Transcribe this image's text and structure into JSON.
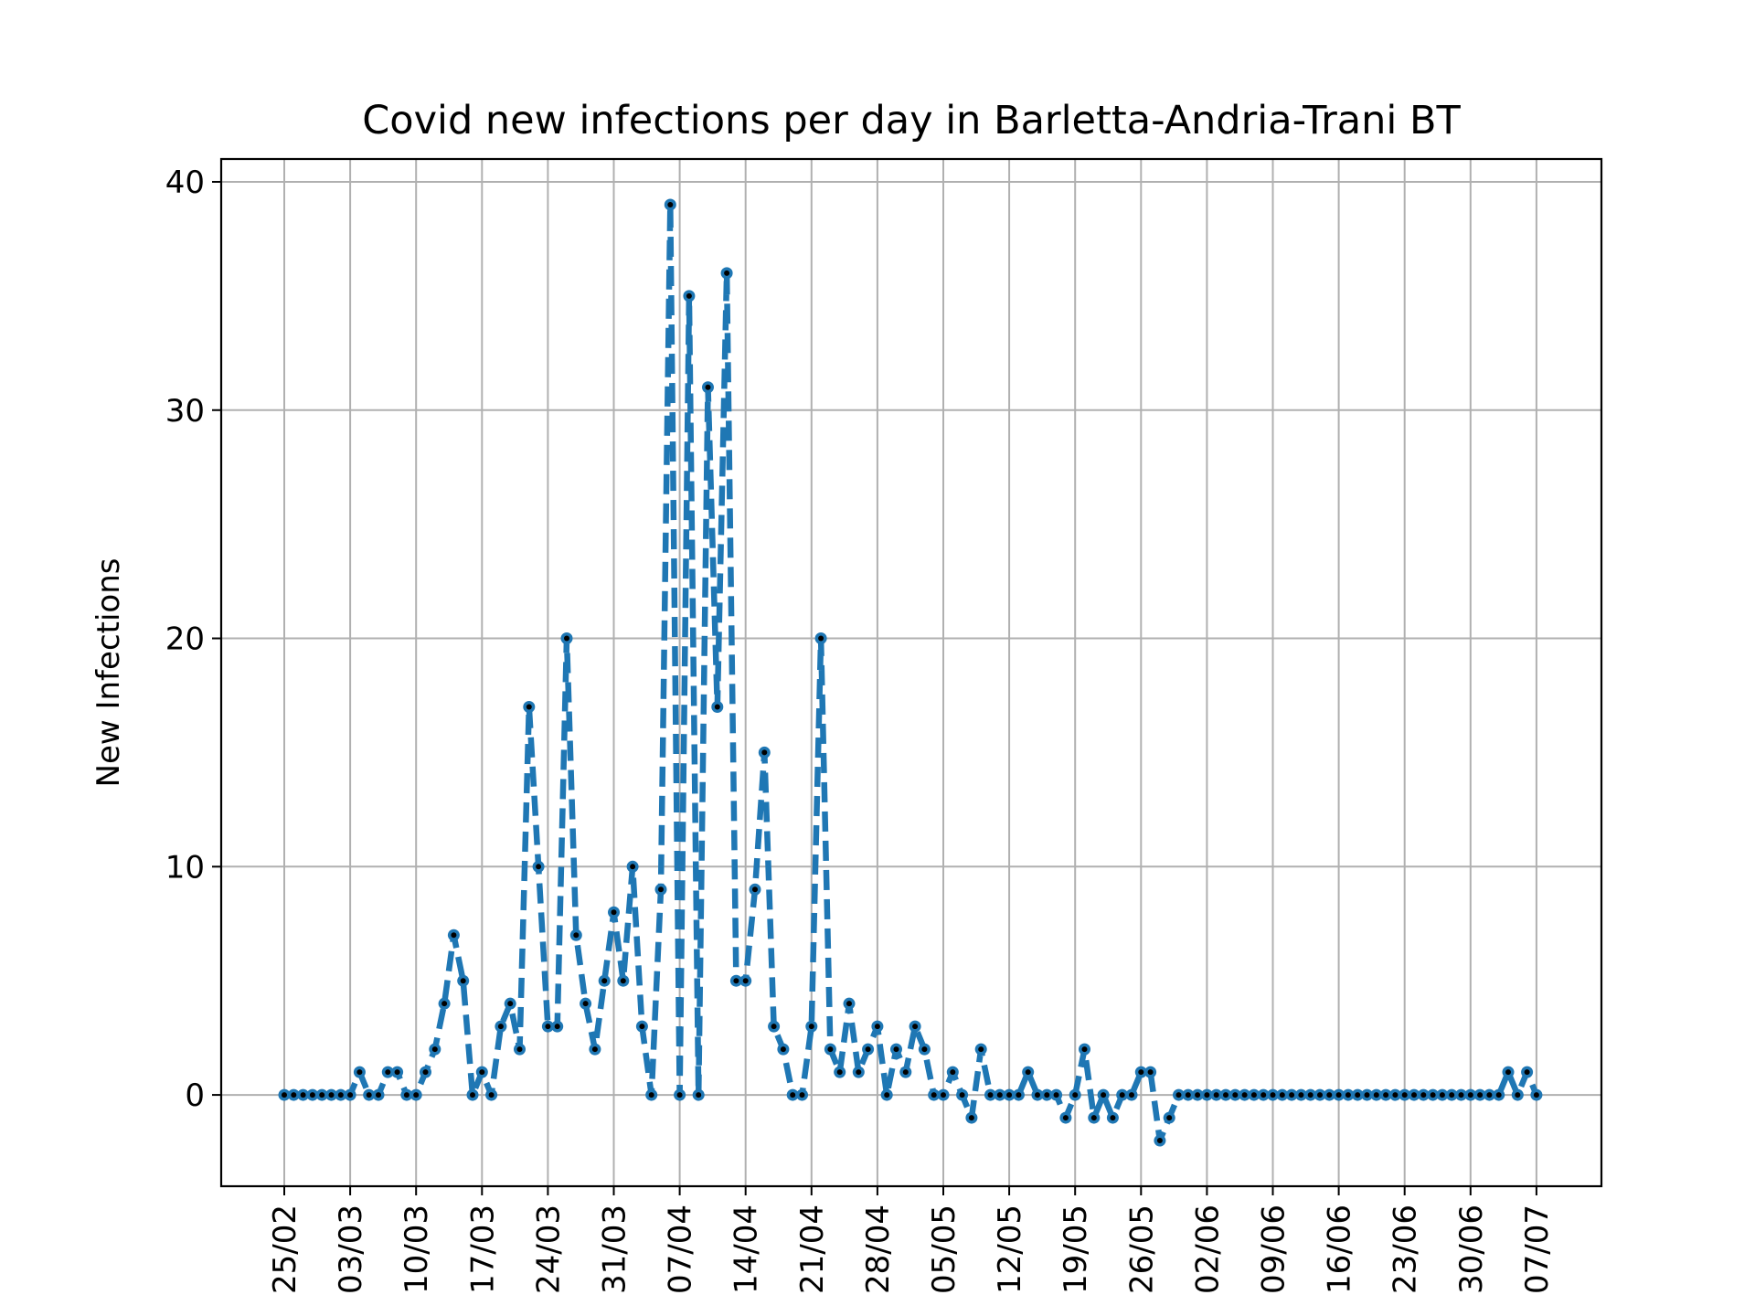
{
  "chart_data": {
    "type": "line",
    "title": "Covid new infections per day in Barletta-Andria-Trani BT",
    "xlabel": "",
    "ylabel": "New Infections",
    "x_start": "2020-02-25",
    "x_end": "2020-07-08",
    "ylim": [
      -4,
      41
    ],
    "y_ticks": [
      0,
      10,
      20,
      30,
      40
    ],
    "x_tick_labels": [
      "25/02",
      "03/03",
      "10/03",
      "17/03",
      "24/03",
      "31/03",
      "07/04",
      "14/04",
      "21/04",
      "28/04",
      "05/05",
      "12/05",
      "19/05",
      "26/05",
      "02/06",
      "09/06",
      "16/06",
      "23/06",
      "30/06",
      "07/07"
    ],
    "grid": true,
    "line_color": "#1f77b4",
    "line_style": "dashed",
    "marker_color": "#000000",
    "series": [
      {
        "values": [
          0,
          0,
          0,
          0,
          0,
          0,
          0,
          0,
          1,
          0,
          0,
          1,
          1,
          0,
          0,
          1,
          2,
          4,
          7,
          5,
          0,
          1,
          0,
          3,
          4,
          2,
          17,
          10,
          3,
          3,
          20,
          7,
          4,
          2,
          5,
          8,
          5,
          10,
          3,
          0,
          9,
          39,
          0,
          35,
          0,
          31,
          17,
          36,
          5,
          5,
          9,
          15,
          3,
          2,
          0,
          0,
          3,
          20,
          2,
          1,
          4,
          1,
          2,
          3,
          0,
          2,
          1,
          3,
          2,
          0,
          0,
          1,
          0,
          -1,
          2,
          0,
          0,
          0,
          0,
          1,
          0,
          0,
          0,
          -1,
          0,
          2,
          -1,
          0,
          -1,
          0,
          0,
          1,
          1,
          -2,
          -1,
          0,
          0,
          0,
          0,
          0,
          0,
          0,
          0,
          0,
          0,
          0,
          0,
          0,
          0,
          0,
          0,
          0,
          0,
          0,
          0,
          0,
          0,
          0,
          0,
          0,
          0,
          0,
          0,
          0,
          0,
          0,
          0,
          0,
          0,
          0,
          1,
          0,
          1,
          0
        ]
      }
    ]
  }
}
